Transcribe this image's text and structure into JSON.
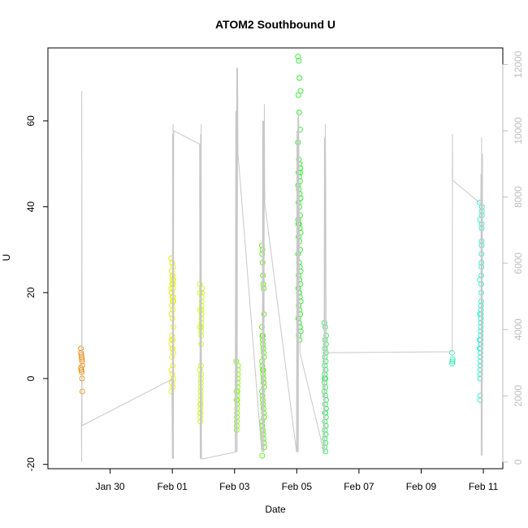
{
  "chart_data": {
    "type": "scatter",
    "title": "ATOM2 Southbound U",
    "xlabel": "Date",
    "ylabel": "U",
    "y2label": "",
    "xlim": [
      "2022-01-28",
      "2022-02-11 15:00"
    ],
    "ylim": [
      -21,
      77
    ],
    "y2lim": [
      -200,
      12500
    ],
    "x_ticks": [
      {
        "date": "2022-01-30",
        "label": "Jan 30"
      },
      {
        "date": "2022-02-01",
        "label": "Feb 01"
      },
      {
        "date": "2022-02-03",
        "label": "Feb 03"
      },
      {
        "date": "2022-02-05",
        "label": "Feb 05"
      },
      {
        "date": "2022-02-07",
        "label": "Feb 07"
      },
      {
        "date": "2022-02-09",
        "label": "Feb 09"
      },
      {
        "date": "2022-02-11",
        "label": "Feb 11"
      }
    ],
    "y_ticks": [
      -20,
      0,
      20,
      40,
      60
    ],
    "y2_ticks": [
      0,
      2000,
      4000,
      6000,
      8000,
      10000,
      12000
    ],
    "grid": false,
    "legend": "none",
    "colors": {
      "right_axis": "#bebebe",
      "line": "#c8c8c8",
      "axis": "#000000"
    },
    "point_groups": [
      {
        "date": "2022-01-29 02:00",
        "color": "#ff8c00",
        "spread_hours": 1.2,
        "values": [
          7,
          6,
          5.5,
          5,
          4.5,
          4,
          3,
          2.5,
          2,
          2,
          1.5,
          0,
          -3
        ]
      },
      {
        "date": "2022-02-01 00:00",
        "color": "#e6f000",
        "spread_hours": 1.8,
        "values": [
          28,
          27,
          26,
          25,
          24,
          23,
          22,
          21,
          20,
          19,
          18,
          17,
          16,
          15,
          14,
          12,
          10,
          9,
          8,
          7,
          6,
          5,
          3,
          2,
          1,
          0,
          -1,
          -2,
          -3,
          24,
          22,
          20,
          18,
          21,
          23,
          19,
          9,
          7
        ]
      },
      {
        "date": "2022-02-01 22:00",
        "color": "#ccff00",
        "spread_hours": 1.6,
        "values": [
          22,
          21,
          20,
          19,
          18,
          17,
          16,
          15,
          14,
          13,
          12,
          11,
          10,
          8,
          3,
          1,
          0,
          -1,
          -2,
          -3,
          -4,
          -5,
          -6,
          -7,
          -8,
          -9,
          -10,
          -6,
          -8,
          16,
          12,
          20,
          2
        ]
      },
      {
        "date": "2022-02-03 02:00",
        "color": "#80ff00",
        "spread_hours": 1.4,
        "values": [
          4,
          3,
          2,
          1,
          0,
          -1,
          -2,
          -3,
          -4,
          -5,
          -6,
          -7,
          -8,
          -9,
          -10,
          -11,
          -12,
          -3,
          -5,
          4
        ]
      },
      {
        "date": "2022-02-03 22:00",
        "color": "#55ee00",
        "spread_hours": 1.8,
        "values": [
          31,
          29,
          27,
          24,
          22,
          21,
          15,
          12,
          10,
          9,
          8,
          7,
          6,
          5,
          4,
          3,
          2,
          1,
          0,
          -1,
          -2,
          -3,
          -4,
          -5,
          -6,
          -7,
          -8,
          -9,
          -10,
          -11,
          -12,
          -13,
          -14,
          -15,
          -16,
          -18,
          30,
          10,
          2,
          -1,
          -9
        ]
      },
      {
        "date": "2022-02-05 02:00",
        "color": "#22ee22",
        "spread_hours": 2.2,
        "values": [
          75,
          74,
          70,
          67,
          66,
          62,
          58,
          55,
          51,
          50,
          49,
          48,
          47,
          46,
          45,
          44,
          43,
          42,
          41,
          40,
          38,
          37,
          36,
          35,
          34,
          33,
          32,
          30,
          29,
          27,
          26,
          25,
          24,
          23,
          22,
          21,
          20,
          19,
          18,
          17,
          16,
          15,
          14,
          13,
          12,
          11,
          10,
          9,
          48,
          36,
          20,
          12
        ]
      },
      {
        "date": "2022-02-05 22:00",
        "color": "#22ee55",
        "spread_hours": 1.4,
        "values": [
          13,
          12,
          10,
          9,
          8,
          7,
          6,
          5,
          4,
          3,
          2,
          1,
          0,
          -1,
          -2,
          -3,
          -4,
          -5,
          -6,
          -7,
          -8,
          -9,
          -10,
          -11,
          -12,
          -13,
          -14,
          -15,
          -16,
          -17,
          0,
          -8
        ]
      },
      {
        "date": "2022-02-10 00:00",
        "color": "#33f0b0",
        "spread_hours": 0.5,
        "values": [
          6,
          4.5,
          4,
          3.5
        ]
      },
      {
        "date": "2022-02-10 22:00",
        "color": "#22f0cc",
        "spread_hours": 1.8,
        "values": [
          41,
          40,
          39,
          38,
          36,
          35,
          32,
          31,
          29,
          27,
          26,
          24,
          22,
          20,
          18,
          17,
          16,
          15,
          14,
          13,
          12,
          11,
          10,
          9,
          8,
          7,
          6,
          5,
          4,
          3,
          2,
          1,
          0,
          -4,
          -5,
          37,
          23,
          15,
          9,
          7
        ]
      }
    ],
    "line_series": {
      "axis": "right",
      "points": [
        [
          "2022-01-29 01:50",
          1200
        ],
        [
          "2022-01-29 02:00",
          0
        ],
        [
          "2022-01-29 02:10",
          11200
        ],
        [
          "2022-01-29 02:20",
          1100
        ],
        [
          "2022-01-31 23:40",
          2500
        ],
        [
          "2022-02-01 00:00",
          100
        ],
        [
          "2022-02-01 00:10",
          9900
        ],
        [
          "2022-02-01 00:20",
          100
        ],
        [
          "2022-02-01 00:35",
          10200
        ],
        [
          "2022-02-01 00:50",
          100
        ],
        [
          "2022-02-01 01:00",
          10000
        ],
        [
          "2022-02-01 21:00",
          9600
        ],
        [
          "2022-02-01 21:30",
          100
        ],
        [
          "2022-02-01 21:45",
          9900
        ],
        [
          "2022-02-01 22:00",
          100
        ],
        [
          "2022-02-01 22:15",
          10200
        ],
        [
          "2022-02-01 22:30",
          100
        ],
        [
          "2022-02-01 23:59",
          100
        ],
        [
          "2022-02-03 00:30",
          300
        ],
        [
          "2022-02-03 01:00",
          10600
        ],
        [
          "2022-02-03 01:20",
          300
        ],
        [
          "2022-02-03 01:40",
          11900
        ],
        [
          "2022-02-03 02:00",
          300
        ],
        [
          "2022-02-03 02:20",
          11900
        ],
        [
          "2022-02-03 02:40",
          9300
        ],
        [
          "2022-02-03 21:00",
          300
        ],
        [
          "2022-02-03 21:30",
          2800
        ],
        [
          "2022-02-03 21:45",
          10300
        ],
        [
          "2022-02-03 22:00",
          300
        ],
        [
          "2022-02-03 22:20",
          10300
        ],
        [
          "2022-02-03 22:40",
          300
        ],
        [
          "2022-02-03 23:00",
          10800
        ],
        [
          "2022-02-03 23:20",
          7800
        ],
        [
          "2022-02-04 23:50",
          300
        ],
        [
          "2022-02-05 00:10",
          10000
        ],
        [
          "2022-02-05 00:30",
          300
        ],
        [
          "2022-02-05 00:50",
          10400
        ],
        [
          "2022-02-05 01:10",
          300
        ],
        [
          "2022-02-05 01:30",
          10600
        ],
        [
          "2022-02-05 02:30",
          3300
        ],
        [
          "2022-02-05 21:00",
          300
        ],
        [
          "2022-02-05 21:20",
          9800
        ],
        [
          "2022-02-05 21:40",
          300
        ],
        [
          "2022-02-05 22:00",
          10200
        ],
        [
          "2022-02-05 22:20",
          8500
        ],
        [
          "2022-02-05 22:40",
          3300
        ],
        [
          "2022-02-10 00:00",
          3330
        ],
        [
          "2022-02-10 00:10",
          9900
        ],
        [
          "2022-02-10 00:20",
          8500
        ],
        [
          "2022-02-10 22:00",
          7800
        ],
        [
          "2022-02-10 22:10",
          8700
        ],
        [
          "2022-02-10 22:20",
          200
        ],
        [
          "2022-02-10 22:40",
          9800
        ],
        [
          "2022-02-10 23:00",
          200
        ],
        [
          "2022-02-10 23:20",
          9300
        ]
      ]
    }
  }
}
